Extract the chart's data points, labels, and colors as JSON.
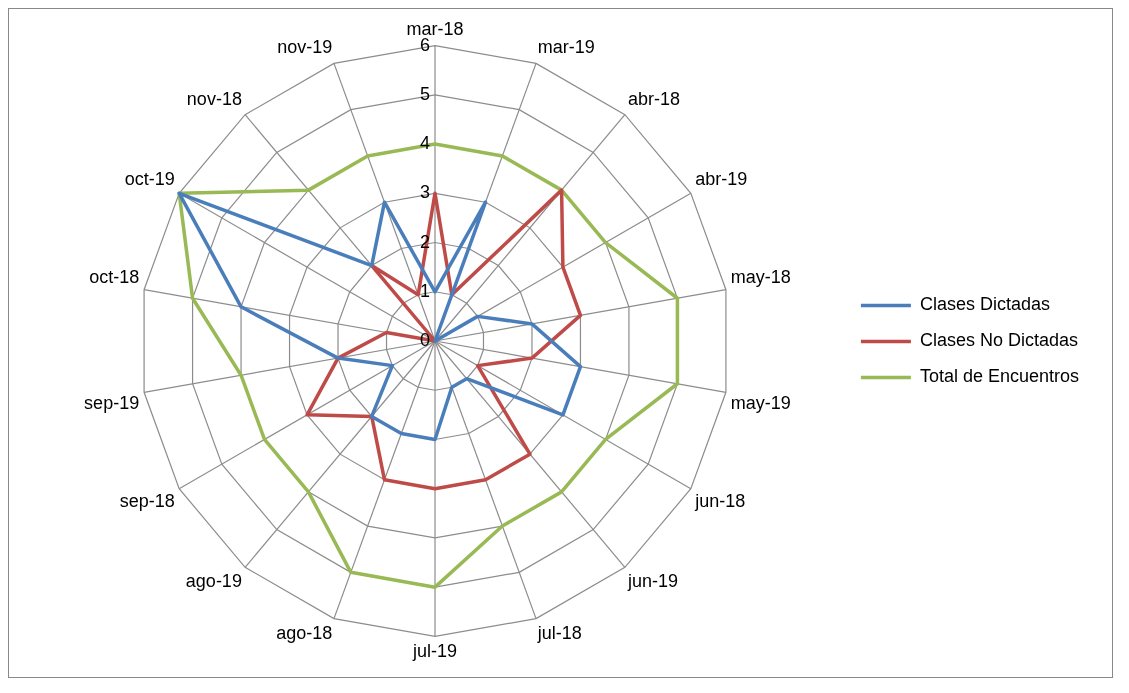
{
  "chart_data": {
    "type": "radar",
    "categories": [
      "mar-18",
      "mar-19",
      "abr-18",
      "abr-19",
      "may-18",
      "may-19",
      "jun-18",
      "jun-19",
      "jul-18",
      "jul-19",
      "ago-18",
      "ago-19",
      "sep-18",
      "sep-19",
      "oct-18",
      "oct-19",
      "nov-18",
      "nov-19"
    ],
    "series": [
      {
        "name": "Clases Dictadas",
        "color": "#4a7ebb",
        "values": [
          1,
          3,
          0,
          1,
          2,
          3,
          3,
          1,
          1,
          2,
          2,
          2,
          1,
          2,
          4,
          6,
          2,
          3
        ]
      },
      {
        "name": "Clases No Dictadas",
        "color": "#be4b48",
        "values": [
          3,
          1,
          4,
          3,
          3,
          2,
          1,
          3,
          3,
          3,
          3,
          2,
          3,
          2,
          1,
          0,
          2,
          1
        ]
      },
      {
        "name": "Total de Encuentros",
        "color": "#98b954",
        "values": [
          4,
          4,
          4,
          4,
          5,
          5,
          4,
          4,
          4,
          5,
          5,
          4,
          4,
          4,
          5,
          6,
          4,
          4
        ]
      }
    ],
    "ylim": [
      0,
      6
    ],
    "yticks": [
      0,
      1,
      2,
      3,
      4,
      5,
      6
    ],
    "grid": true,
    "legend": "right",
    "marker": "none"
  }
}
